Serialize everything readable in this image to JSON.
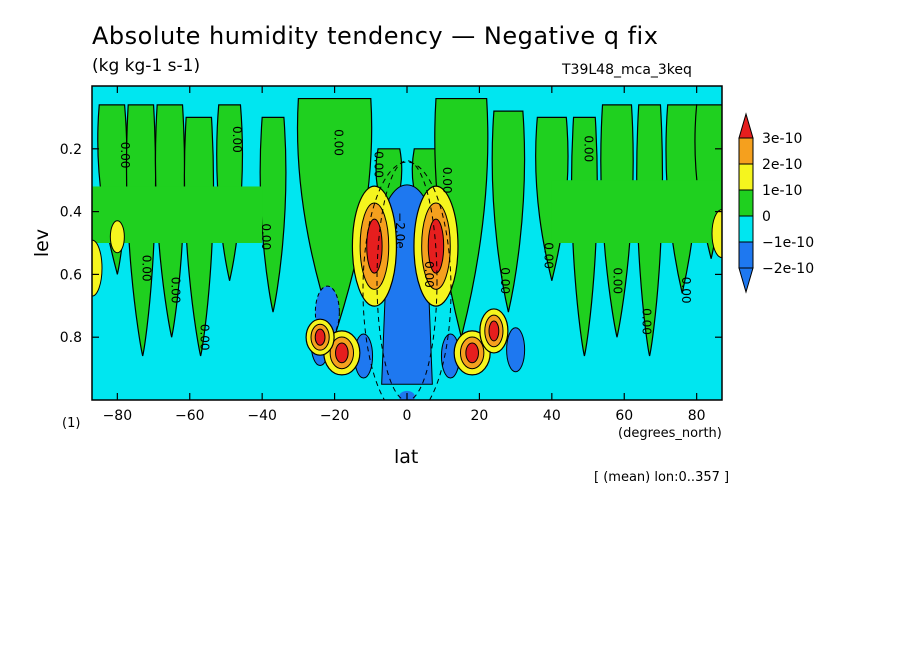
{
  "header": {
    "title": "Absolute humidity tendency — Negative q fix",
    "units": "(kg kg-1 s-1)",
    "experiment": "T39L48_mca_3keq"
  },
  "footer": {
    "mean_note": "[ (mean) lon:0..357 ]",
    "x_unit": "(degrees_north)",
    "y_unit": "(1)"
  },
  "chart_data": {
    "type": "heatmap",
    "title": "Absolute humidity tendency — Negative q fix",
    "subtitle": "(kg kg-1 s-1)",
    "xlabel": "lat",
    "ylabel": "lev",
    "xlim": [
      -87,
      87
    ],
    "ylim": [
      1.0,
      0.0
    ],
    "x_ticks": [
      -80,
      -60,
      -40,
      -20,
      0,
      20,
      40,
      60,
      80
    ],
    "x_tick_labels": [
      "−80",
      "−60",
      "−40",
      "−20",
      "0",
      "20",
      "40",
      "60",
      "80"
    ],
    "y_ticks": [
      0.2,
      0.4,
      0.6,
      0.8
    ],
    "y_tick_labels": [
      "0.2",
      "0.4",
      "0.6",
      "0.8"
    ],
    "contour_labels": [
      "0.00",
      "−2.0e"
    ],
    "colorbar": {
      "levels": [
        -2e-10,
        -1e-10,
        0,
        1e-10,
        2e-10,
        3e-10
      ],
      "labels": [
        "3e-10",
        "2e-10",
        "1e-10",
        "0",
        "−1e-10",
        "−2e-10"
      ],
      "colors": [
        "#1e78f0",
        "#00e6f0",
        "#1fd01f",
        "#f5f51e",
        "#f5a01e",
        "#e61e1e"
      ]
    },
    "background_class": "−1e-10 to 0",
    "features": [
      {
        "name": "equatorial_negative_column",
        "lat_range": [
          -6,
          6
        ],
        "lev_range": [
          0.35,
          0.95
        ],
        "class": "≤ −2e-10"
      },
      {
        "name": "positive_core_south",
        "lat": -9,
        "lev": 0.51,
        "class": "≥ 3e-10"
      },
      {
        "name": "positive_core_north",
        "lat": 8,
        "lev": 0.51,
        "class": "≥ 3e-10"
      },
      {
        "name": "positive_core_south_low",
        "lat": -17,
        "lev": 0.85,
        "class": "≥ 3e-10"
      },
      {
        "name": "positive_core_north_low",
        "lat": 17,
        "lev": 0.85,
        "class": "≥ 3e-10"
      }
    ]
  }
}
